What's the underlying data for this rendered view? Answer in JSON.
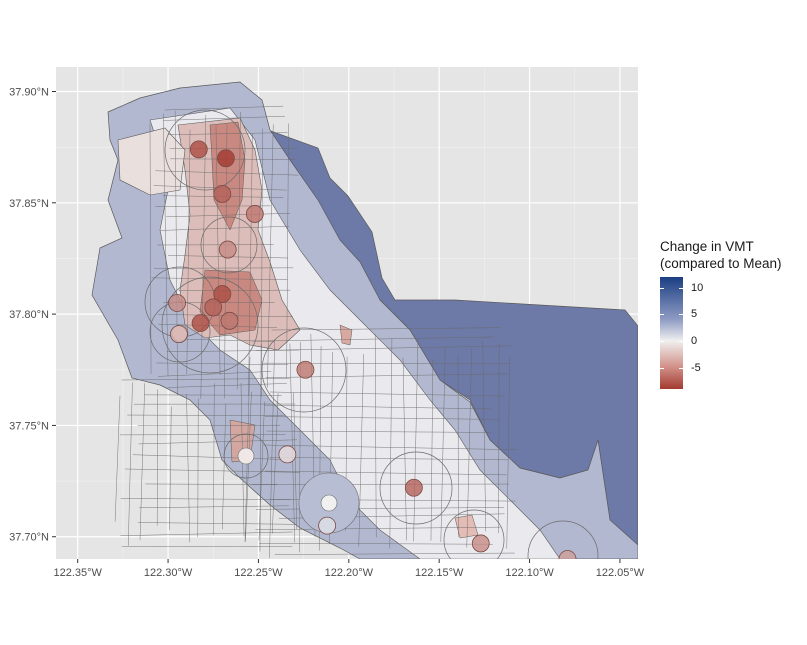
{
  "chart_data": {
    "type": "choropleth-map",
    "title": "",
    "xlabel": "",
    "ylabel": "",
    "x_ticks": [
      "122.35°W",
      "122.30°W",
      "122.25°W",
      "122.20°W",
      "122.15°W",
      "122.10°W",
      "122.05°W"
    ],
    "x_tick_values": [
      -122.35,
      -122.3,
      -122.25,
      -122.2,
      -122.15,
      -122.1,
      -122.05
    ],
    "y_ticks": [
      "37.90°N",
      "37.85°N",
      "37.80°N",
      "37.75°N",
      "37.70°N"
    ],
    "y_tick_values": [
      37.9,
      37.85,
      37.8,
      37.75,
      37.7
    ],
    "xlim": [
      -122.362,
      -122.04
    ],
    "ylim": [
      37.69,
      37.911
    ],
    "grid": true,
    "background": "#e5e5e5",
    "legend": {
      "title_lines": [
        "Change in VMT",
        "(compared to Mean)"
      ],
      "ticks": [
        "10",
        "5",
        "0",
        "-5"
      ],
      "tick_values": [
        10,
        5,
        0,
        -5
      ],
      "range": [
        -9,
        12
      ],
      "low_color": "#a33a2f",
      "mid_color": "#f0f0f0",
      "high_color": "#1b3f82",
      "position": "right"
    },
    "transit_points": [
      {
        "lon": -122.283,
        "lat": 37.874,
        "vmt_change": -8
      },
      {
        "lon": -122.268,
        "lat": 37.87,
        "vmt_change": -9
      },
      {
        "lon": -122.27,
        "lat": 37.854,
        "vmt_change": -7
      },
      {
        "lon": -122.252,
        "lat": 37.845,
        "vmt_change": -6
      },
      {
        "lon": -122.267,
        "lat": 37.829,
        "vmt_change": -5
      },
      {
        "lon": -122.27,
        "lat": 37.809,
        "vmt_change": -8
      },
      {
        "lon": -122.275,
        "lat": 37.803,
        "vmt_change": -7
      },
      {
        "lon": -122.266,
        "lat": 37.797,
        "vmt_change": -6
      },
      {
        "lon": -122.282,
        "lat": 37.796,
        "vmt_change": -8
      },
      {
        "lon": -122.295,
        "lat": 37.805,
        "vmt_change": -5
      },
      {
        "lon": -122.294,
        "lat": 37.791,
        "vmt_change": -3
      },
      {
        "lon": -122.224,
        "lat": 37.775,
        "vmt_change": -6
      },
      {
        "lon": -122.164,
        "lat": 37.722,
        "vmt_change": -7
      },
      {
        "lon": -122.127,
        "lat": 37.697,
        "vmt_change": -5
      },
      {
        "lon": -122.079,
        "lat": 37.69,
        "vmt_change": -4
      },
      {
        "lon": -122.234,
        "lat": 37.737,
        "vmt_change": -1
      },
      {
        "lon": -122.212,
        "lat": 37.705,
        "vmt_change": 1
      }
    ]
  }
}
